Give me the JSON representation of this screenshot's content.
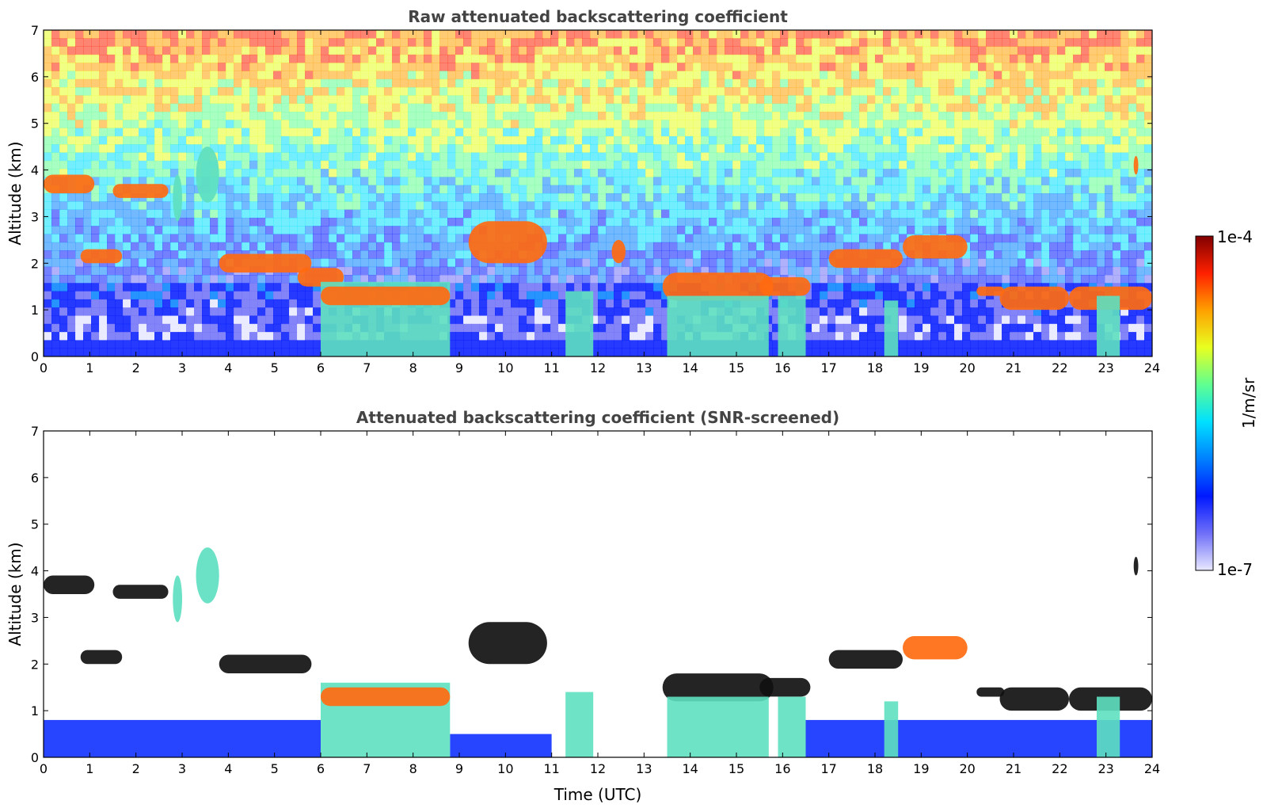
{
  "chart_data": [
    {
      "type": "heatmap",
      "title": "Raw attenuated backscattering coefficient",
      "xlabel": "",
      "ylabel": "Altitude (km)",
      "xlim": [
        0,
        24
      ],
      "ylim": [
        0,
        7
      ],
      "xticks": [
        0,
        1,
        2,
        3,
        4,
        5,
        6,
        7,
        8,
        9,
        10,
        11,
        12,
        13,
        14,
        15,
        16,
        17,
        18,
        19,
        20,
        21,
        22,
        23,
        24
      ],
      "yticks": [
        0,
        1,
        2,
        3,
        4,
        5,
        6,
        7
      ],
      "background_noise": "dense speckle everywhere; blue near ground, cyan/green mid-levels, yellow/red above ~5 km",
      "features": [
        {
          "kind": "cloud",
          "x": [
            0.0,
            1.1
          ],
          "y": [
            3.5,
            3.9
          ],
          "level": "high"
        },
        {
          "kind": "cloud",
          "x": [
            1.5,
            2.7
          ],
          "y": [
            3.4,
            3.7
          ],
          "level": "high"
        },
        {
          "kind": "cloud",
          "x": [
            0.8,
            1.7
          ],
          "y": [
            2.0,
            2.3
          ],
          "level": "high"
        },
        {
          "kind": "virga",
          "x": [
            2.8,
            3.0
          ],
          "y": [
            2.9,
            3.9
          ],
          "level": "mid"
        },
        {
          "kind": "virga",
          "x": [
            3.3,
            3.8
          ],
          "y": [
            3.3,
            4.5
          ],
          "level": "mid"
        },
        {
          "kind": "cloud",
          "x": [
            3.8,
            5.8
          ],
          "y": [
            1.8,
            2.2
          ],
          "level": "high"
        },
        {
          "kind": "cloud",
          "x": [
            5.5,
            6.5
          ],
          "y": [
            1.5,
            1.9
          ],
          "level": "high"
        },
        {
          "kind": "precip",
          "x": [
            6.0,
            8.8
          ],
          "y": [
            0.0,
            1.6
          ],
          "level": "mid"
        },
        {
          "kind": "cloud",
          "x": [
            6.0,
            8.8
          ],
          "y": [
            1.1,
            1.5
          ],
          "level": "high"
        },
        {
          "kind": "cloud",
          "x": [
            9.2,
            10.9
          ],
          "y": [
            2.0,
            2.9
          ],
          "level": "high"
        },
        {
          "kind": "precip",
          "x": [
            11.3,
            11.9
          ],
          "y": [
            0.0,
            1.4
          ],
          "level": "mid"
        },
        {
          "kind": "cloud",
          "x": [
            12.3,
            12.6
          ],
          "y": [
            2.0,
            2.5
          ],
          "level": "high"
        },
        {
          "kind": "cloud",
          "x": [
            13.4,
            15.8
          ],
          "y": [
            1.2,
            1.8
          ],
          "level": "high"
        },
        {
          "kind": "precip",
          "x": [
            13.5,
            15.7
          ],
          "y": [
            0.0,
            1.3
          ],
          "level": "mid"
        },
        {
          "kind": "cloud",
          "x": [
            15.5,
            16.6
          ],
          "y": [
            1.3,
            1.7
          ],
          "level": "high"
        },
        {
          "kind": "precip",
          "x": [
            15.9,
            16.5
          ],
          "y": [
            0.0,
            1.3
          ],
          "level": "mid"
        },
        {
          "kind": "cloud",
          "x": [
            17.0,
            18.6
          ],
          "y": [
            1.9,
            2.3
          ],
          "level": "high"
        },
        {
          "kind": "cloud",
          "x": [
            18.6,
            20.0
          ],
          "y": [
            2.1,
            2.6
          ],
          "level": "high"
        },
        {
          "kind": "precip",
          "x": [
            18.2,
            18.5
          ],
          "y": [
            0.0,
            1.2
          ],
          "level": "mid"
        },
        {
          "kind": "cloud",
          "x": [
            20.2,
            20.8
          ],
          "y": [
            1.3,
            1.5
          ],
          "level": "high"
        },
        {
          "kind": "cloud",
          "x": [
            20.7,
            22.2
          ],
          "y": [
            1.0,
            1.5
          ],
          "level": "high"
        },
        {
          "kind": "cloud",
          "x": [
            22.2,
            24.0
          ],
          "y": [
            1.0,
            1.5
          ],
          "level": "high"
        },
        {
          "kind": "precip",
          "x": [
            22.8,
            23.3
          ],
          "y": [
            0.0,
            1.3
          ],
          "level": "mid"
        },
        {
          "kind": "cloud",
          "x": [
            23.6,
            23.7
          ],
          "y": [
            3.9,
            4.3
          ],
          "level": "high"
        }
      ]
    },
    {
      "type": "heatmap",
      "title": "Attenuated backscattering coefficient (SNR-screened)",
      "xlabel": "Time (UTC)",
      "ylabel": "Altitude (km)",
      "xlim": [
        0,
        24
      ],
      "ylim": [
        0,
        7
      ],
      "xticks": [
        0,
        1,
        2,
        3,
        4,
        5,
        6,
        7,
        8,
        9,
        10,
        11,
        12,
        13,
        14,
        15,
        16,
        17,
        18,
        19,
        20,
        21,
        22,
        23,
        24
      ],
      "yticks": [
        0,
        1,
        2,
        3,
        4,
        5,
        6,
        7
      ],
      "background_noise": "removed (white) except boundary layer below ~0.8 km",
      "features": [
        {
          "kind": "layer",
          "x": [
            0.0,
            6.0
          ],
          "y": [
            0.0,
            0.8
          ],
          "level": "low"
        },
        {
          "kind": "layer",
          "x": [
            8.8,
            11.0
          ],
          "y": [
            0.0,
            0.5
          ],
          "level": "low"
        },
        {
          "kind": "layer",
          "x": [
            16.5,
            24.0
          ],
          "y": [
            0.0,
            0.8
          ],
          "level": "low"
        },
        {
          "kind": "cloud",
          "x": [
            0.0,
            1.1
          ],
          "y": [
            3.5,
            3.9
          ],
          "level": "sat"
        },
        {
          "kind": "cloud",
          "x": [
            1.5,
            2.7
          ],
          "y": [
            3.4,
            3.7
          ],
          "level": "sat"
        },
        {
          "kind": "cloud",
          "x": [
            0.8,
            1.7
          ],
          "y": [
            2.0,
            2.3
          ],
          "level": "sat"
        },
        {
          "kind": "virga",
          "x": [
            2.8,
            3.0
          ],
          "y": [
            2.9,
            3.9
          ],
          "level": "mid"
        },
        {
          "kind": "virga",
          "x": [
            3.3,
            3.8
          ],
          "y": [
            3.3,
            4.5
          ],
          "level": "mid"
        },
        {
          "kind": "cloud",
          "x": [
            3.8,
            5.8
          ],
          "y": [
            1.8,
            2.2
          ],
          "level": "sat"
        },
        {
          "kind": "precip",
          "x": [
            6.0,
            8.8
          ],
          "y": [
            0.0,
            1.6
          ],
          "level": "mid"
        },
        {
          "kind": "cloud",
          "x": [
            6.0,
            8.8
          ],
          "y": [
            1.1,
            1.5
          ],
          "level": "high"
        },
        {
          "kind": "cloud",
          "x": [
            9.2,
            10.9
          ],
          "y": [
            2.0,
            2.9
          ],
          "level": "sat"
        },
        {
          "kind": "precip",
          "x": [
            11.3,
            11.9
          ],
          "y": [
            0.0,
            1.4
          ],
          "level": "mid"
        },
        {
          "kind": "cloud",
          "x": [
            13.4,
            15.8
          ],
          "y": [
            1.2,
            1.8
          ],
          "level": "sat"
        },
        {
          "kind": "precip",
          "x": [
            13.5,
            15.7
          ],
          "y": [
            0.0,
            1.3
          ],
          "level": "mid"
        },
        {
          "kind": "cloud",
          "x": [
            15.5,
            16.6
          ],
          "y": [
            1.3,
            1.7
          ],
          "level": "sat"
        },
        {
          "kind": "precip",
          "x": [
            15.9,
            16.5
          ],
          "y": [
            0.0,
            1.3
          ],
          "level": "mid"
        },
        {
          "kind": "cloud",
          "x": [
            17.0,
            18.6
          ],
          "y": [
            1.9,
            2.3
          ],
          "level": "sat"
        },
        {
          "kind": "cloud",
          "x": [
            18.6,
            20.0
          ],
          "y": [
            2.1,
            2.6
          ],
          "level": "high"
        },
        {
          "kind": "precip",
          "x": [
            18.2,
            18.5
          ],
          "y": [
            0.0,
            1.2
          ],
          "level": "mid"
        },
        {
          "kind": "cloud",
          "x": [
            20.2,
            20.8
          ],
          "y": [
            1.3,
            1.5
          ],
          "level": "sat"
        },
        {
          "kind": "cloud",
          "x": [
            20.7,
            22.2
          ],
          "y": [
            1.0,
            1.5
          ],
          "level": "sat"
        },
        {
          "kind": "cloud",
          "x": [
            22.2,
            24.0
          ],
          "y": [
            1.0,
            1.5
          ],
          "level": "sat"
        },
        {
          "kind": "precip",
          "x": [
            22.8,
            23.3
          ],
          "y": [
            0.0,
            1.3
          ],
          "level": "mid"
        },
        {
          "kind": "cloud",
          "x": [
            23.6,
            23.7
          ],
          "y": [
            3.9,
            4.3
          ],
          "level": "sat"
        }
      ]
    }
  ],
  "colorbar": {
    "max_label": "1e-4",
    "min_label": "1e-7",
    "unit_label": "1/m/sr",
    "colormap": "jet",
    "colors": {
      "low": "#1030ff",
      "mid": "#5ee0c0",
      "high": "#ff6a10",
      "sat": "#111111",
      "cbar_stops": [
        "#e8e8ff",
        "#6f6ff8",
        "#0018ff",
        "#0080ff",
        "#00e0ff",
        "#60ff90",
        "#e8ff20",
        "#ffa000",
        "#ff2000",
        "#800000"
      ]
    }
  }
}
